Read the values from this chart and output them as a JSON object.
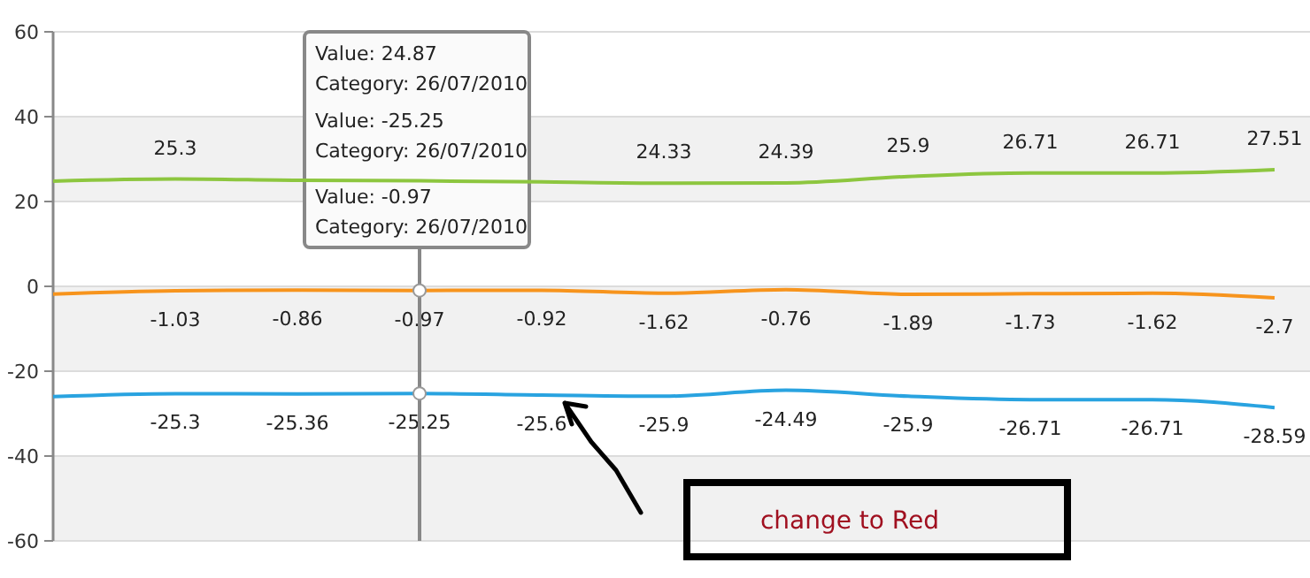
{
  "chart_data": {
    "type": "line",
    "categories": [
      null,
      null,
      null,
      null,
      null,
      null,
      null,
      null,
      null,
      null,
      null
    ],
    "series": [
      {
        "color": "#8dc63f",
        "values": [
          24.8,
          25.3,
          25.0,
          24.87,
          24.63,
          24.33,
          24.39,
          25.9,
          26.71,
          26.71,
          27.51
        ],
        "value_labels": [
          null,
          "25.3",
          null,
          null,
          null,
          "24.33",
          "24.39",
          "25.9",
          "26.71",
          "26.71",
          "27.51"
        ]
      },
      {
        "color": "#f7941d",
        "values": [
          -1.8,
          -1.03,
          -0.86,
          -0.97,
          -0.92,
          -1.62,
          -0.76,
          -1.89,
          -1.73,
          -1.62,
          -2.7
        ],
        "value_labels": [
          null,
          "-1.03",
          "-0.86",
          "-0.97",
          "-0.92",
          "-1.62",
          "-0.76",
          "-1.89",
          "-1.73",
          "-1.62",
          "-2.7"
        ]
      },
      {
        "color": "#29a3e0",
        "values": [
          -26,
          -25.3,
          -25.36,
          -25.25,
          -25.6,
          -25.9,
          -24.49,
          -25.9,
          -26.71,
          -26.71,
          -28.59
        ],
        "value_labels": [
          null,
          "-25.3",
          "-25.36",
          "-25.25",
          "-25.6",
          "-25.9",
          "-24.49",
          "-25.9",
          "-26.71",
          "-26.71",
          "-28.59"
        ]
      }
    ],
    "ylim": [
      -60,
      60
    ],
    "yticks": [
      -60,
      -40,
      -20,
      0,
      20,
      40,
      60
    ],
    "grid": "y",
    "marker": "none",
    "line_style": "solid",
    "annotations": [
      "Value: 24.87",
      "Category: 26/07/2010",
      "Value: -25.25",
      "Category: 26/07/2010",
      "Value: -0.97",
      "Category: 26/07/2010",
      "change to Red"
    ]
  }
}
